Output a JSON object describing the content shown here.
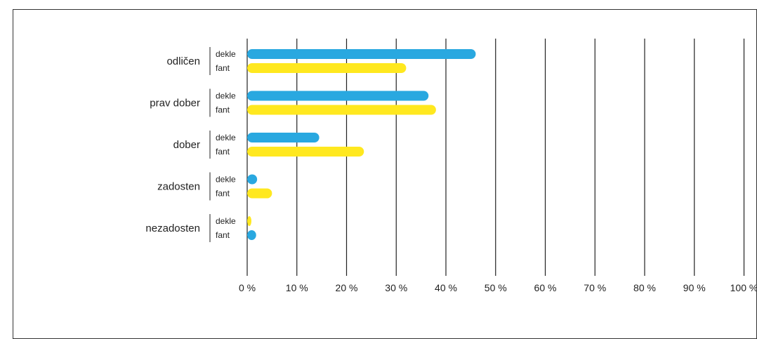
{
  "chart_data": {
    "type": "bar",
    "orientation": "horizontal",
    "categories": [
      "odličen",
      "prav dober",
      "dober",
      "zadosten",
      "nezadosten"
    ],
    "rows": [
      {
        "category": "odličen",
        "bars": [
          {
            "label": "dekle",
            "value": 46,
            "color": "#29a8e0"
          },
          {
            "label": "fant",
            "value": 32,
            "color": "#ffe81f"
          }
        ]
      },
      {
        "category": "prav dober",
        "bars": [
          {
            "label": "dekle",
            "value": 36.5,
            "color": "#29a8e0"
          },
          {
            "label": "fant",
            "value": 38,
            "color": "#ffe81f"
          }
        ]
      },
      {
        "category": "dober",
        "bars": [
          {
            "label": "dekle",
            "value": 14.5,
            "color": "#29a8e0"
          },
          {
            "label": "fant",
            "value": 23.5,
            "color": "#ffe81f"
          }
        ]
      },
      {
        "category": "zadosten",
        "bars": [
          {
            "label": "dekle",
            "value": 2,
            "color": "#29a8e0"
          },
          {
            "label": "fant",
            "value": 5,
            "color": "#ffe81f"
          }
        ]
      },
      {
        "category": "nezadosten",
        "bars": [
          {
            "label": "dekle",
            "value": 0.5,
            "color": "#ffe81f"
          },
          {
            "label": "fant",
            "value": 1.8,
            "color": "#29a8e0"
          }
        ]
      }
    ],
    "xlim": [
      0,
      100
    ],
    "xticks": [
      0,
      10,
      20,
      30,
      40,
      50,
      60,
      70,
      80,
      90,
      100
    ],
    "xtick_labels": [
      "0 %",
      "10 %",
      "20 %",
      "30 %",
      "40 %",
      "50 %",
      "60 %",
      "70 %",
      "80 %",
      "90 %",
      "100 %"
    ],
    "grid": "vertical",
    "title": "",
    "xlabel": "",
    "ylabel": ""
  }
}
